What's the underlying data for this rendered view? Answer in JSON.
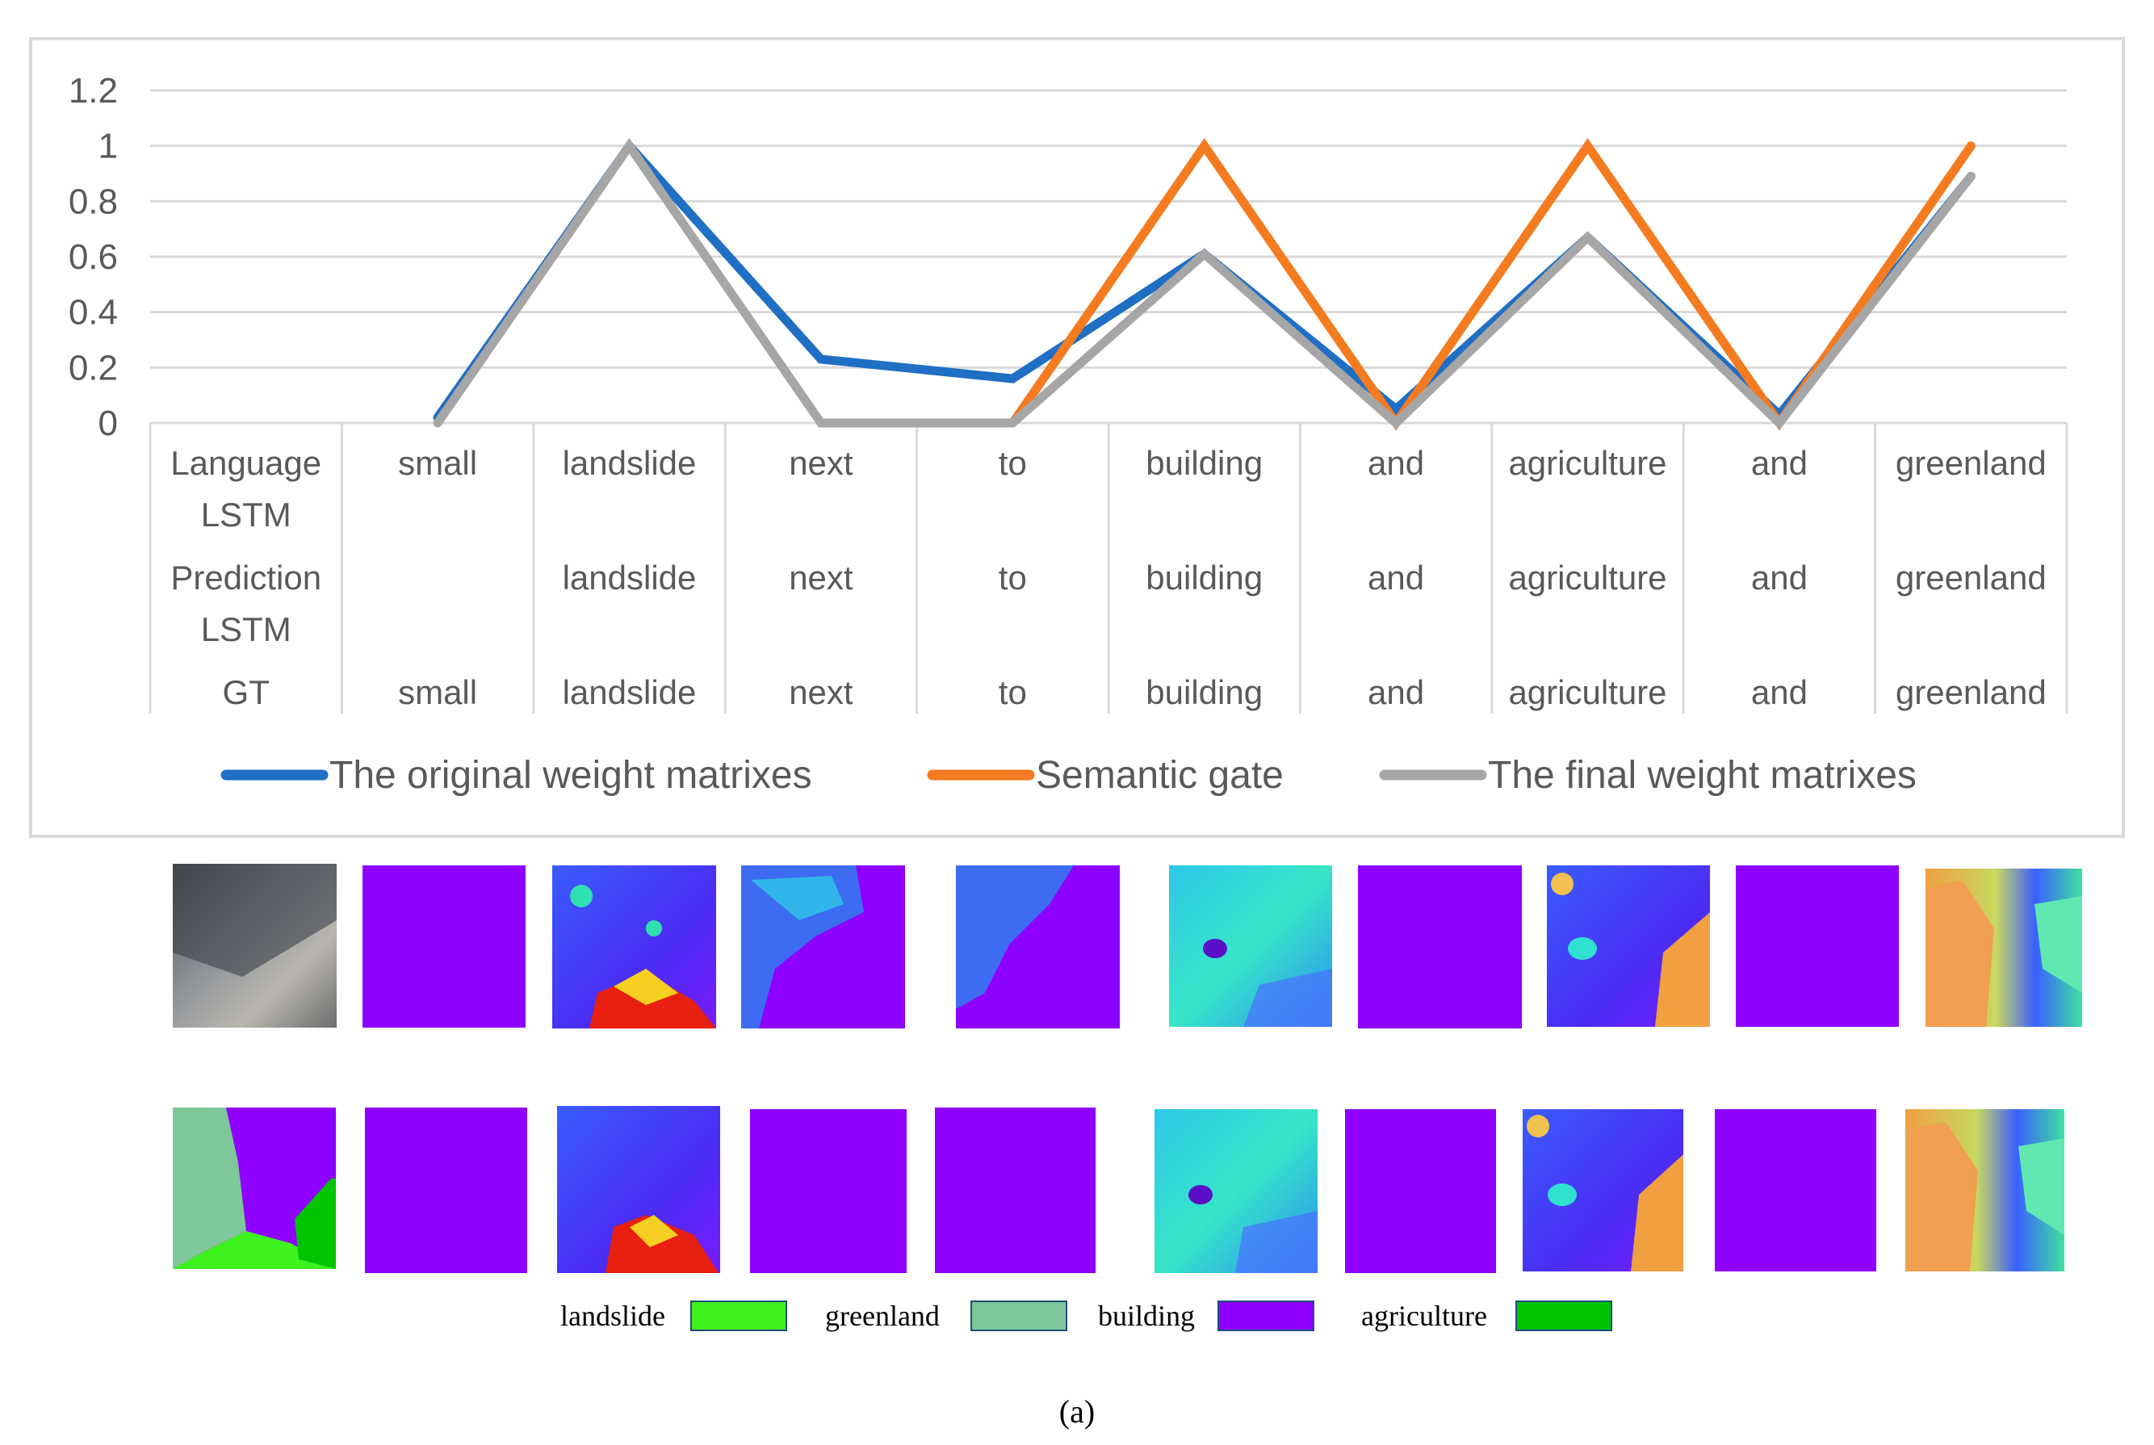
{
  "chart_data": {
    "type": "line",
    "categories": [
      "",
      "small",
      "landslide",
      "next",
      "to",
      "building",
      "and",
      "agriculture",
      "and",
      "greenland"
    ],
    "table_rows": [
      {
        "name": "Language LSTM",
        "name_lines": [
          "Language",
          "LSTM"
        ],
        "values": [
          "",
          "small",
          "landslide",
          "next",
          "to",
          "building",
          "and",
          "agriculture",
          "and",
          "greenland"
        ]
      },
      {
        "name": "Prediction LSTM",
        "name_lines": [
          "Prediction",
          "LSTM"
        ],
        "values": [
          "",
          "",
          "landslide",
          "next",
          "to",
          "building",
          "and",
          "agriculture",
          "and",
          "greenland"
        ]
      },
      {
        "name": "GT",
        "name_lines": [
          "GT"
        ],
        "values": [
          "",
          "small",
          "landslide",
          "next",
          "to",
          "building",
          "and",
          "agriculture",
          "and",
          "greenland"
        ]
      }
    ],
    "series": [
      {
        "name": "The original weight matrixes",
        "color": "#1f6fc4",
        "values": [
          null,
          0.02,
          1.0,
          0.23,
          0.16,
          0.61,
          0.05,
          0.67,
          0.03,
          0.89
        ]
      },
      {
        "name": "Semantic gate",
        "color": "#f47b20",
        "values": [
          null,
          null,
          null,
          null,
          0.0,
          1.0,
          0.0,
          1.0,
          0.0,
          1.0
        ]
      },
      {
        "name": "The final weight matrixes",
        "color": "#a6a6a6",
        "values": [
          null,
          0.0,
          1.0,
          0.0,
          0.0,
          0.61,
          0.0,
          0.67,
          0.0,
          0.89
        ]
      }
    ],
    "yticks": [
      "0",
      "0.2",
      "0.4",
      "0.6",
      "0.8",
      "1",
      "1.2"
    ],
    "ylim": [
      0,
      1.2
    ],
    "grid": true,
    "legend_position": "bottom"
  },
  "segmentation_legend": [
    {
      "label": "landslide",
      "color": "#3ef21e"
    },
    {
      "label": "greenland",
      "color": "#7ec79a"
    },
    {
      "label": "building",
      "color": "#8e00ff"
    },
    {
      "label": "agriculture",
      "color": "#00c400"
    }
  ],
  "caption": "(a)"
}
